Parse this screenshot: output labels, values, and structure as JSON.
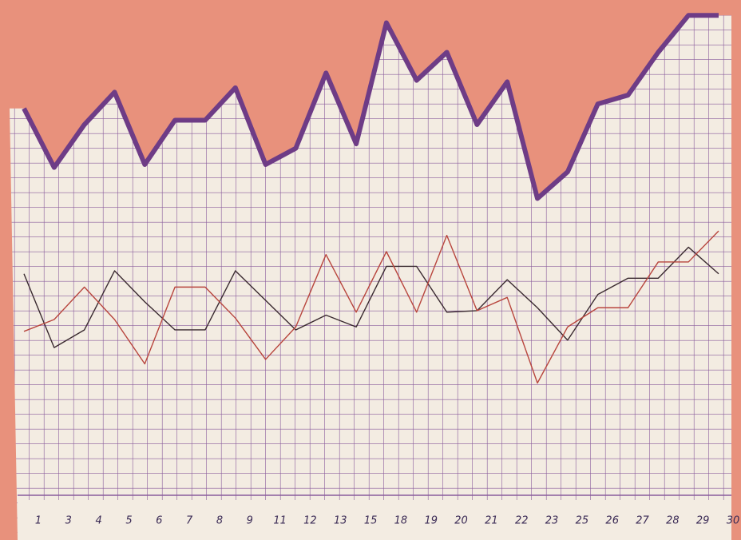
{
  "chart_data": {
    "type": "line",
    "categories": [
      "1",
      "3",
      "4",
      "5",
      "6",
      "7",
      "8",
      "9",
      "11",
      "12",
      "13",
      "15",
      "18",
      "19",
      "20",
      "21",
      "22",
      "23",
      "25",
      "26",
      "27",
      "28",
      "29",
      "30"
    ],
    "series": [
      {
        "color": "#6e3c86",
        "width": 6,
        "values": [
          26.2,
          22.2,
          25.1,
          27.3,
          22.4,
          25.4,
          25.4,
          27.6,
          22.4,
          23.5,
          28.6,
          23.8,
          32.0,
          28.1,
          30.0,
          25.1,
          28.0,
          20.1,
          21.9,
          26.5,
          27.1,
          30.0,
          32.5,
          32.5
        ]
      },
      {
        "color": "#3a2a30",
        "width": 1.4,
        "values": [
          15.0,
          10.0,
          11.2,
          15.2,
          13.1,
          11.2,
          11.2,
          15.2,
          13.2,
          11.2,
          12.2,
          11.4,
          15.5,
          15.5,
          12.4,
          12.5,
          14.6,
          12.7,
          10.5,
          13.6,
          14.7,
          14.7,
          16.8,
          15.0
        ]
      },
      {
        "color": "#b8453d",
        "width": 1.4,
        "values": [
          11.1,
          11.9,
          14.1,
          11.9,
          8.9,
          14.1,
          14.1,
          12.0,
          9.2,
          11.4,
          16.3,
          12.4,
          16.5,
          12.4,
          17.6,
          12.5,
          13.4,
          7.6,
          11.4,
          12.7,
          12.7,
          15.8,
          15.8,
          17.9
        ]
      }
    ],
    "ylim": [
      0,
      33
    ]
  }
}
